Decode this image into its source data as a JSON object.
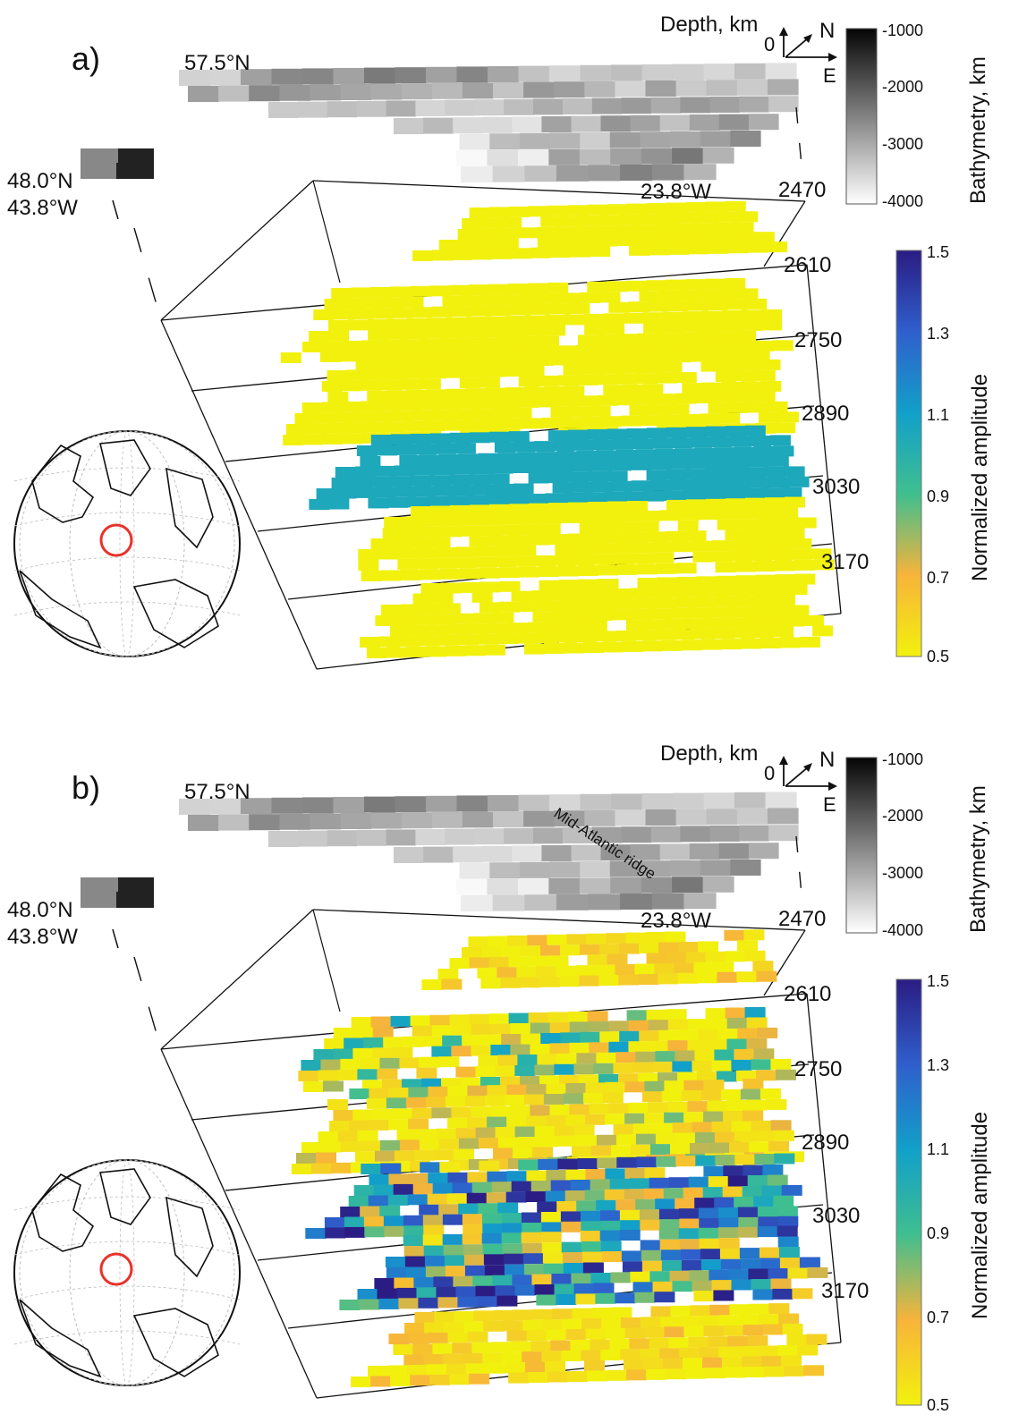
{
  "chart_data": [
    {
      "type": "heatmap",
      "panel_label": "a)",
      "annotations": {
        "lat_top": "57.5°N",
        "lat_bottom": "48.0°N",
        "lon_left": "43.8°W",
        "lon_right": "23.8°W",
        "depth_axis": "Depth, km",
        "depth_zero": "0",
        "north": "N",
        "east": "E"
      },
      "depth_ticks": [
        "2470",
        "2610",
        "2750",
        "2890",
        "3030",
        "3170"
      ],
      "bathymetry_colorbar": {
        "label": "Bathymetry, km",
        "ticks": [
          "-1000",
          "-2000",
          "-3000",
          "-4000"
        ],
        "range": [
          -4000,
          -1000
        ]
      },
      "amplitude_colorbar": {
        "label": "Normalized amplitude",
        "ticks": [
          "1.5",
          "1.3",
          "1.1",
          "0.9",
          "0.7",
          "0.5"
        ],
        "range": [
          0.5,
          1.5
        ]
      },
      "layers": [
        {
          "depth": 2470,
          "amplitude": 0.5
        },
        {
          "depth": 2610,
          "amplitude": 0.5
        },
        {
          "depth": 2750,
          "amplitude": 0.5
        },
        {
          "depth": 2890,
          "amplitude": 1.05
        },
        {
          "depth": 3030,
          "amplitude": 0.5
        },
        {
          "depth": 3170,
          "amplitude": 0.5
        }
      ]
    },
    {
      "type": "heatmap",
      "panel_label": "b)",
      "annotations": {
        "lat_top": "57.5°N",
        "lat_bottom": "48.0°N",
        "lon_left": "43.8°W",
        "lon_right": "23.8°W",
        "depth_axis": "Depth, km",
        "depth_zero": "0",
        "north": "N",
        "east": "E",
        "ridge": "Mid-Atlantic ridge"
      },
      "depth_ticks": [
        "2470",
        "2610",
        "2750",
        "2890",
        "3030",
        "3170"
      ],
      "bathymetry_colorbar": {
        "label": "Bathymetry, km",
        "ticks": [
          "-1000",
          "-2000",
          "-3000",
          "-4000"
        ],
        "range": [
          -4000,
          -1000
        ]
      },
      "amplitude_colorbar": {
        "label": "Normalized amplitude",
        "ticks": [
          "1.5",
          "1.3",
          "1.1",
          "0.9",
          "0.7",
          "0.5"
        ],
        "range": [
          0.5,
          1.5
        ]
      },
      "layers": [
        {
          "depth": 2470,
          "amplitude_range": [
            0.5,
            0.7
          ]
        },
        {
          "depth": 2610,
          "amplitude_range": [
            0.5,
            1.1
          ]
        },
        {
          "depth": 2750,
          "amplitude_range": [
            0.5,
            0.9
          ]
        },
        {
          "depth": 2890,
          "amplitude_range": [
            0.5,
            1.5
          ]
        },
        {
          "depth": 3030,
          "amplitude_range": [
            0.5,
            1.5
          ]
        },
        {
          "depth": 3170,
          "amplitude_range": [
            0.5,
            0.7
          ]
        }
      ]
    }
  ]
}
